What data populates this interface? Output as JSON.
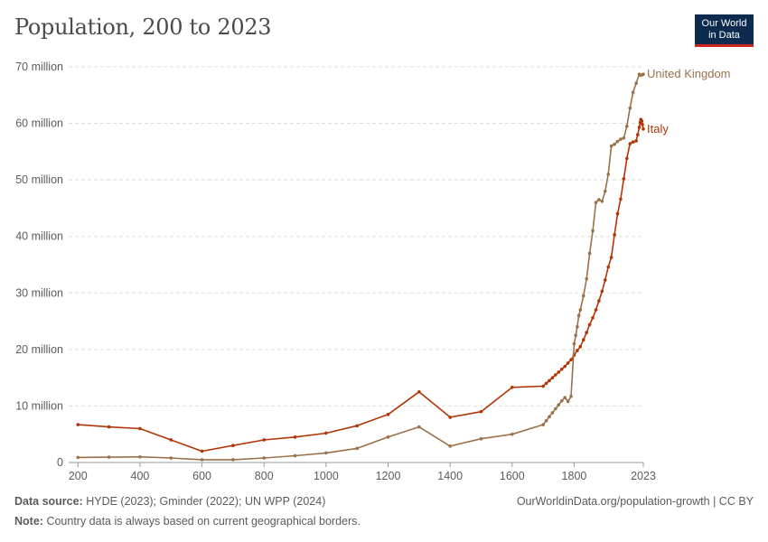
{
  "header": {
    "title": "Population, 200 to 2023",
    "logo_line1": "Our World",
    "logo_line2": "in Data"
  },
  "footer": {
    "source_label": "Data source:",
    "source_text": "HYDE (2023); Gminder (2022); UN WPP (2024)",
    "credit": "OurWorldinData.org/population-growth | CC BY",
    "note_label": "Note:",
    "note_text": "Country data is always based on current geographical borders."
  },
  "colors": {
    "italy": "#b13507",
    "uk": "#9a7149",
    "grid": "#dddddd",
    "text": "#5b5b5b"
  },
  "chart_data": {
    "type": "line",
    "title": "Population, 200 to 2023",
    "xlabel": "",
    "ylabel": "",
    "xlim": [
      170,
      2023
    ],
    "ylim": [
      0,
      70000000
    ],
    "x_ticks": [
      200,
      400,
      600,
      800,
      1000,
      1200,
      1400,
      1600,
      1800,
      2023
    ],
    "x_tick_labels": [
      "200",
      "400",
      "600",
      "800",
      "1000",
      "1200",
      "1400",
      "1600",
      "1800",
      "2023"
    ],
    "y_ticks": [
      0,
      10000000,
      20000000,
      30000000,
      40000000,
      50000000,
      60000000,
      70000000
    ],
    "y_tick_labels": [
      "0",
      "10 million",
      "20 million",
      "30 million",
      "40 million",
      "50 million",
      "60 million",
      "70 million"
    ],
    "grid": true,
    "series": [
      {
        "name": "Italy",
        "x": [
          200,
          300,
          400,
          500,
          600,
          700,
          800,
          900,
          1000,
          1100,
          1200,
          1300,
          1400,
          1500,
          1600,
          1700,
          1710,
          1720,
          1730,
          1740,
          1750,
          1760,
          1770,
          1780,
          1790,
          1800,
          1810,
          1820,
          1830,
          1840,
          1850,
          1860,
          1870,
          1880,
          1890,
          1900,
          1910,
          1920,
          1930,
          1940,
          1950,
          1960,
          1970,
          1980,
          1990,
          2000,
          2005,
          2010,
          2013,
          2015,
          2018,
          2020,
          2023
        ],
        "values": [
          6700000,
          6300000,
          6000000,
          4000000,
          2000000,
          3000000,
          4000000,
          4500000,
          5200000,
          6500000,
          8500000,
          12500000,
          8000000,
          9000000,
          13300000,
          13500000,
          14000000,
          14500000,
          15000000,
          15500000,
          16000000,
          16500000,
          17000000,
          17600000,
          18200000,
          19000000,
          19800000,
          20500000,
          21700000,
          23000000,
          24400000,
          25600000,
          27000000,
          28600000,
          30300000,
          32300000,
          34600000,
          36300000,
          40300000,
          44000000,
          46600000,
          50200000,
          53800000,
          56400000,
          56700000,
          56900000,
          58000000,
          59300000,
          60200000,
          60700000,
          60400000,
          59800000,
          59000000
        ]
      },
      {
        "name": "United Kingdom",
        "x": [
          200,
          300,
          400,
          500,
          600,
          700,
          800,
          900,
          1000,
          1100,
          1200,
          1300,
          1400,
          1500,
          1600,
          1700,
          1710,
          1720,
          1730,
          1740,
          1750,
          1760,
          1770,
          1780,
          1790,
          1800,
          1805,
          1810,
          1815,
          1820,
          1830,
          1840,
          1850,
          1860,
          1870,
          1880,
          1890,
          1900,
          1910,
          1920,
          1930,
          1940,
          1950,
          1960,
          1970,
          1980,
          1990,
          2000,
          2010,
          2015,
          2020,
          2023
        ],
        "values": [
          900000,
          950000,
          1000000,
          800000,
          500000,
          500000,
          800000,
          1200000,
          1700000,
          2500000,
          4500000,
          6300000,
          2900000,
          4200000,
          5000000,
          6700000,
          7400000,
          8100000,
          8800000,
          9500000,
          10200000,
          10900000,
          11500000,
          10800000,
          11700000,
          21000000,
          22500000,
          24000000,
          26000000,
          27000000,
          29500000,
          32500000,
          37000000,
          41000000,
          46000000,
          46500000,
          46200000,
          48000000,
          51000000,
          56000000,
          56300000,
          56800000,
          57200000,
          57400000,
          59500000,
          62700000,
          65500000,
          67100000,
          68700000,
          68500000,
          68600000,
          68700000
        ]
      }
    ]
  }
}
